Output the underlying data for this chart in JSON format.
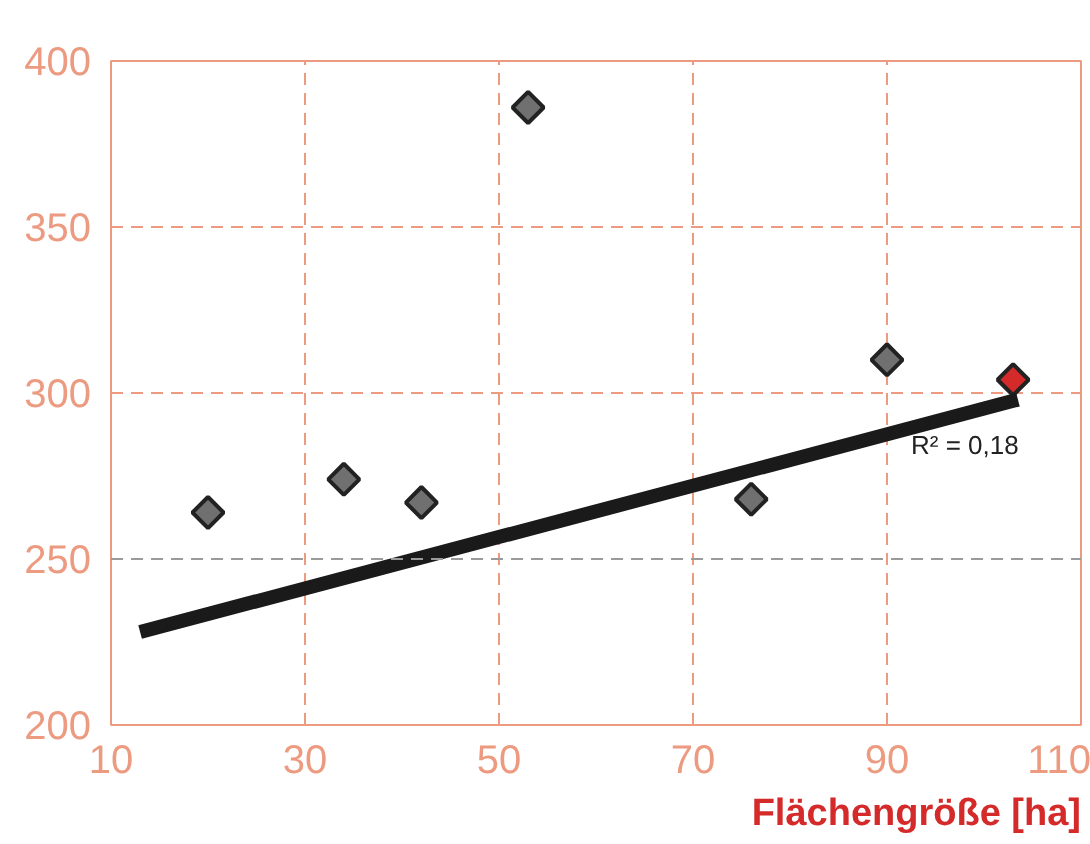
{
  "chart_data": {
    "type": "scatter",
    "xlabel": "Flächengröße [ha]",
    "xlim": [
      10,
      110
    ],
    "ylim": [
      200,
      400
    ],
    "xticks": [
      10,
      30,
      50,
      70,
      90,
      110
    ],
    "yticks": [
      200,
      250,
      300,
      350,
      400
    ],
    "grid": true,
    "series": [
      {
        "marker": "diamond",
        "x": [
          20,
          34,
          42,
          53,
          76,
          90,
          103
        ],
        "values": [
          264,
          274,
          267,
          386,
          268,
          310,
          304
        ],
        "colors": [
          "#707070",
          "#707070",
          "#707070",
          "#707070",
          "#707070",
          "#707070",
          "#d42a2a"
        ]
      },
      {
        "type": "line",
        "x": [
          13,
          103.5
        ],
        "values": [
          228,
          298
        ],
        "color": "#1a1a1a"
      }
    ],
    "ref_lines": [
      {
        "axis": "y",
        "value": 250,
        "color": "#9a9a9a",
        "line_style": "dashed"
      }
    ],
    "annotations": [
      "R² = 0,18"
    ]
  }
}
